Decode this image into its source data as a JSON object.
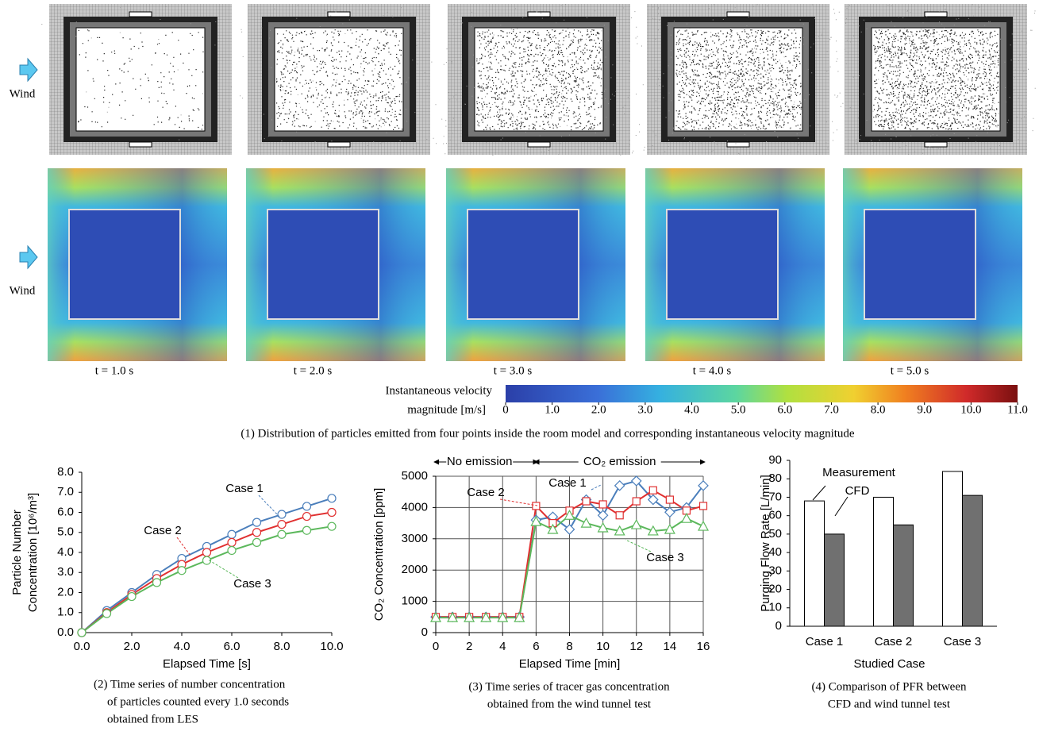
{
  "figure": {
    "wind_labels": [
      "Wind",
      "Wind"
    ],
    "time_labels": [
      "t = 1.0 s",
      "t = 2.0 s",
      "t = 3.0 s",
      "t = 4.0 s",
      "t = 5.0 s"
    ],
    "colorbar": {
      "label": [
        "Instantaneous velocity",
        "magnitude  [m/s]"
      ],
      "lim": [
        0,
        11
      ],
      "ticks": [
        0,
        {
          "value": 1,
          "label": "1.0"
        },
        {
          "value": 2,
          "label": "2.0"
        },
        {
          "value": 3,
          "label": "3.0"
        },
        {
          "value": 4,
          "label": "4.0"
        },
        {
          "value": 5,
          "label": "5.0"
        },
        {
          "value": 6,
          "label": "6.0"
        },
        {
          "value": 7,
          "label": "7.0"
        },
        {
          "value": 8,
          "label": "8.0"
        },
        {
          "value": 9,
          "label": "9.0"
        },
        {
          "value": 10,
          "label": "10.0"
        },
        {
          "value": 11,
          "label": "11.0"
        }
      ]
    },
    "caption": "(1) Distribution of particles emitted from four points inside the room model and corresponding instantaneous velocity magnitude"
  },
  "chart_data": [
    {
      "type": "line",
      "x_label": "Elapsed Time [s]",
      "y_label": [
        "Particle Number",
        "Concentration [10⁶/m³]"
      ],
      "x": [
        0,
        1,
        2,
        3,
        4,
        5,
        6,
        7,
        8,
        9,
        10
      ],
      "series": [
        {
          "name": "Case 1",
          "color": "#4a7ebb",
          "marker": "circle",
          "values": [
            0,
            1.1,
            2.0,
            2.9,
            3.7,
            4.3,
            4.9,
            5.5,
            5.9,
            6.3,
            6.7
          ]
        },
        {
          "name": "Case 2",
          "color": "#e03030",
          "marker": "circle",
          "values": [
            0,
            1.0,
            1.9,
            2.7,
            3.4,
            4.0,
            4.5,
            5.0,
            5.4,
            5.8,
            6.0
          ]
        },
        {
          "name": "Case 3",
          "color": "#5cb85c",
          "marker": "circle",
          "values": [
            0,
            0.95,
            1.8,
            2.5,
            3.1,
            3.6,
            4.1,
            4.5,
            4.9,
            5.1,
            5.3
          ]
        }
      ],
      "xlim": [
        0,
        10
      ],
      "xticks": [
        {
          "value": 0,
          "label": "0.0"
        },
        {
          "value": 2,
          "label": "2.0"
        },
        {
          "value": 4,
          "label": "4.0"
        },
        {
          "value": 6,
          "label": "6.0"
        },
        {
          "value": 8,
          "label": "8.0"
        },
        {
          "value": 10,
          "label": "10.0"
        }
      ],
      "ylim": [
        0,
        8
      ],
      "yticks": [
        {
          "value": 0,
          "label": "0.0"
        },
        {
          "value": 1,
          "label": "1.0"
        },
        {
          "value": 2,
          "label": "2.0"
        },
        {
          "value": 3,
          "label": "3.0"
        },
        {
          "value": 4,
          "label": "4.0"
        },
        {
          "value": 5,
          "label": "5.0"
        },
        {
          "value": 6,
          "label": "6.0"
        },
        {
          "value": 7,
          "label": "7.0"
        },
        {
          "value": 8,
          "label": "8.0"
        }
      ],
      "grid": false,
      "caption": [
        "(2) Time series of number concentration",
        "of particles counted every 1.0 seconds",
        "obtained from LES"
      ]
    },
    {
      "type": "line",
      "x_label": "Elapsed Time [min]",
      "y_label": [
        "CO₂ Concentration [ppm]"
      ],
      "annotations": [
        "No emission",
        "CO₂ emission"
      ],
      "x": [
        0,
        1,
        2,
        3,
        4,
        5,
        6,
        7,
        8,
        9,
        10,
        11,
        12,
        13,
        14,
        15,
        16
      ],
      "series": [
        {
          "name": "Case 1",
          "color": "#4a7ebb",
          "marker": "diamond",
          "values": [
            500,
            500,
            500,
            500,
            500,
            500,
            3600,
            3700,
            3300,
            4250,
            3750,
            4700,
            4850,
            4250,
            3850,
            4000,
            4700
          ]
        },
        {
          "name": "Case 2",
          "color": "#e03030",
          "marker": "square",
          "values": [
            500,
            500,
            500,
            500,
            500,
            500,
            4050,
            3500,
            3900,
            4200,
            4100,
            3750,
            4200,
            4550,
            4250,
            3900,
            4050
          ]
        },
        {
          "name": "Case 3",
          "color": "#5cb85c",
          "marker": "triangle",
          "values": [
            480,
            480,
            480,
            480,
            480,
            480,
            3550,
            3300,
            3750,
            3500,
            3350,
            3250,
            3450,
            3250,
            3300,
            3650,
            3400
          ]
        }
      ],
      "xlim": [
        0,
        16
      ],
      "xticks": [
        0,
        2,
        4,
        6,
        8,
        10,
        12,
        14,
        16
      ],
      "ylim": [
        0,
        5000
      ],
      "yticks": [
        0,
        1000,
        2000,
        3000,
        4000,
        5000
      ],
      "grid": true,
      "caption": [
        "(3) Time series of tracer gas concentration",
        "obtained from the wind tunnel test"
      ]
    },
    {
      "type": "bar",
      "x_label": "Studied Case",
      "y_label": [
        "Purging Flow Rate [L/min]"
      ],
      "categories": [
        "Case 1",
        "Case 2",
        "Case 3"
      ],
      "series": [
        {
          "name": "Measurement",
          "color": "#ffffff",
          "values": [
            68,
            70,
            84
          ]
        },
        {
          "name": "CFD",
          "color": "#707070",
          "values": [
            50,
            55,
            71
          ]
        }
      ],
      "ylim": [
        0,
        90
      ],
      "yticks": [
        0,
        10,
        20,
        30,
        40,
        50,
        60,
        70,
        80,
        90
      ],
      "grid": false,
      "caption": [
        "(4) Comparison of PFR between",
        "CFD and wind tunnel test"
      ]
    }
  ]
}
